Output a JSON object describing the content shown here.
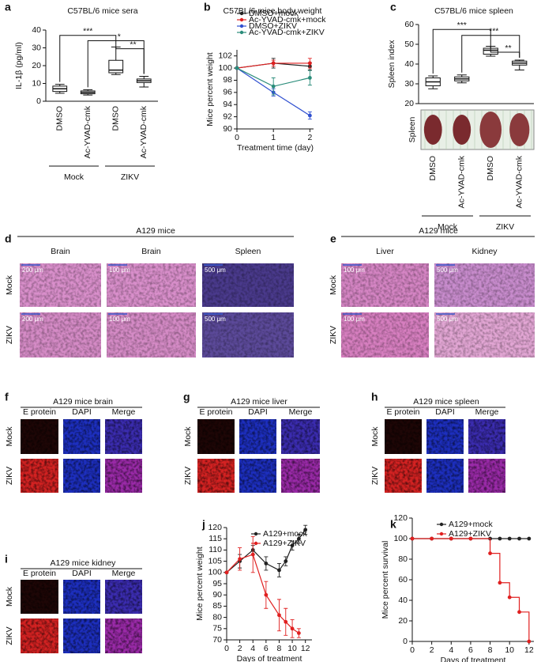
{
  "chart_data": [
    {
      "label": "a",
      "type": "box",
      "title": "C57BL/6 mice sera",
      "ylabel": "IL-1β (pg/ml)",
      "categories": [
        "DMSO",
        "Ac-YVAD-cmk",
        "DMSO",
        "Ac-YVAD-cmk"
      ],
      "groups": [
        "Mock",
        "ZIKV"
      ],
      "ylim": [
        0,
        40
      ],
      "yticks": [
        0,
        10,
        20,
        30,
        40
      ],
      "boxes": [
        {
          "min": 4.5,
          "q1": 5.5,
          "median": 7,
          "q3": 8.5,
          "max": 9.5
        },
        {
          "min": 3.5,
          "q1": 4.2,
          "median": 5,
          "q3": 5.8,
          "max": 6.5
        },
        {
          "min": 15,
          "q1": 16,
          "median": 17.5,
          "q3": 23,
          "max": 30.5
        },
        {
          "min": 8,
          "q1": 10.5,
          "median": 11.5,
          "q3": 12.5,
          "max": 14
        }
      ],
      "significance": [
        "***",
        "*",
        "**"
      ]
    },
    {
      "label": "b",
      "type": "line",
      "title": "C57BL/6 mice body weight",
      "xlabel": "Treatment time (day)",
      "ylabel": "Mice percent weight",
      "xlim": [
        0,
        2.1
      ],
      "xticks": [
        0,
        1,
        2
      ],
      "ylim": [
        90,
        103
      ],
      "yticks": [
        90,
        92,
        94,
        96,
        98,
        100,
        102
      ],
      "series": [
        {
          "name": "DMSO+mock",
          "color": "#222222",
          "x": [
            0,
            1,
            2
          ],
          "values": [
            100,
            100.8,
            100.3
          ],
          "errors": [
            0,
            0.8,
            0.6
          ]
        },
        {
          "name": "Ac-YVAD-cmk+mock",
          "color": "#e02020",
          "x": [
            0,
            1,
            2
          ],
          "values": [
            100,
            100.8,
            100.8
          ],
          "errors": [
            0,
            0.5,
            0.8
          ]
        },
        {
          "name": "DMSO+ZIKV",
          "color": "#3050d0",
          "x": [
            0,
            1,
            2
          ],
          "values": [
            100,
            96,
            92.2
          ],
          "errors": [
            0,
            0.6,
            0.6
          ]
        },
        {
          "name": "Ac-YVAD-cmk+ZIKV",
          "color": "#2a8c7a",
          "x": [
            0,
            1,
            2
          ],
          "values": [
            100,
            97,
            98.4
          ],
          "errors": [
            0,
            1.4,
            1.2
          ]
        }
      ]
    },
    {
      "label": "c",
      "type": "box",
      "title": "C57BL/6 mice spleen",
      "ylabel": "Spleen index",
      "image_label": "Spleen",
      "categories": [
        "DMSO",
        "Ac-YVAD-cmk",
        "DMSO",
        "Ac-YVAD-cmk"
      ],
      "groups": [
        "Mock",
        "ZIKV"
      ],
      "ylim": [
        20,
        60
      ],
      "yticks": [
        20,
        30,
        40,
        50,
        60
      ],
      "boxes": [
        {
          "min": 27.5,
          "q1": 29,
          "median": 31,
          "q3": 33,
          "max": 34
        },
        {
          "min": 30.5,
          "q1": 31.5,
          "median": 32.5,
          "q3": 33.5,
          "max": 34.5
        },
        {
          "min": 44,
          "q1": 45,
          "median": 47,
          "q3": 48,
          "max": 49
        },
        {
          "min": 37,
          "q1": 39.5,
          "median": 40.5,
          "q3": 41.5,
          "max": 42
        }
      ],
      "significance": [
        "***",
        "***",
        "**"
      ]
    },
    {
      "label": "j",
      "type": "line",
      "xlabel": "Days of treatment",
      "ylabel": "Mice percent weight",
      "xlim": [
        0,
        13
      ],
      "xticks": [
        0,
        2,
        4,
        6,
        8,
        10,
        12
      ],
      "ylim": [
        70,
        120
      ],
      "yticks": [
        70,
        75,
        80,
        85,
        90,
        95,
        100,
        105,
        110,
        115,
        120
      ],
      "series": [
        {
          "name": "A129+mock",
          "color": "#222222",
          "x": [
            0,
            2,
            4,
            6,
            8,
            9,
            10,
            11,
            12
          ],
          "values": [
            100,
            105,
            110,
            104,
            101,
            105,
            112,
            115,
            119
          ],
          "errors": [
            0,
            3,
            2,
            3,
            3,
            2,
            2,
            2,
            2
          ]
        },
        {
          "name": "A129+ZIKV",
          "color": "#e02020",
          "x": [
            0,
            2,
            4,
            6,
            8,
            9,
            10,
            11
          ],
          "values": [
            100,
            106,
            108,
            90,
            81,
            78,
            75,
            73
          ],
          "errors": [
            0,
            5,
            8,
            6,
            7,
            6,
            4,
            2
          ]
        }
      ]
    },
    {
      "label": "k",
      "type": "step",
      "xlabel": "Days of treatment",
      "ylabel": "Mice percent survival",
      "xlim": [
        0,
        12.5
      ],
      "xticks": [
        0,
        2,
        4,
        6,
        8,
        10,
        12
      ],
      "ylim": [
        0,
        120
      ],
      "yticks": [
        0,
        20,
        40,
        60,
        80,
        100,
        120
      ],
      "series": [
        {
          "name": "A129+mock",
          "color": "#222222",
          "x": [
            0,
            2,
            4,
            6,
            8,
            9,
            10,
            11,
            12
          ],
          "values": [
            100,
            100,
            100,
            100,
            100,
            100,
            100,
            100,
            100
          ]
        },
        {
          "name": "A129+ZIKV",
          "color": "#e02020",
          "x": [
            0,
            2,
            4,
            6,
            8,
            9,
            10,
            11,
            12
          ],
          "values": [
            100,
            100,
            100,
            100,
            85.7,
            57.1,
            42.9,
            28.6,
            0
          ]
        }
      ]
    }
  ],
  "image_panels": [
    {
      "label": "d",
      "title": "A129 mice",
      "columns": [
        "Brain",
        "Brain",
        "Spleen"
      ],
      "rows": [
        "Mock",
        "ZIKV"
      ],
      "scale_bars": [
        [
          "200 μm",
          "100 μm",
          "500 μm"
        ],
        [
          "200 μm",
          "100 μm",
          "500 μm"
        ]
      ]
    },
    {
      "label": "e",
      "title": "A129 mice",
      "columns": [
        "Liver",
        "Kidney"
      ],
      "rows": [
        "Mock",
        "ZIKV"
      ],
      "scale_bars": [
        [
          "100 μm",
          "500 μm"
        ],
        [
          "100 μm",
          "500 μm"
        ]
      ]
    },
    {
      "label": "f",
      "title": "A129 mice brain",
      "columns": [
        "E protein",
        "DAPI",
        "Merge"
      ],
      "rows": [
        "Mock",
        "ZIKV"
      ]
    },
    {
      "label": "g",
      "title": "A129 mice liver",
      "columns": [
        "E protein",
        "DAPI",
        "Merge"
      ],
      "rows": [
        "Mock",
        "ZIKV"
      ]
    },
    {
      "label": "h",
      "title": "A129 mice spleen",
      "columns": [
        "E protein",
        "DAPI",
        "Merge"
      ],
      "rows": [
        "Mock",
        "ZIKV"
      ]
    },
    {
      "label": "i",
      "title": "A129 mice kidney",
      "columns": [
        "E protein",
        "DAPI",
        "Merge"
      ],
      "rows": [
        "Mock",
        "ZIKV"
      ]
    }
  ]
}
